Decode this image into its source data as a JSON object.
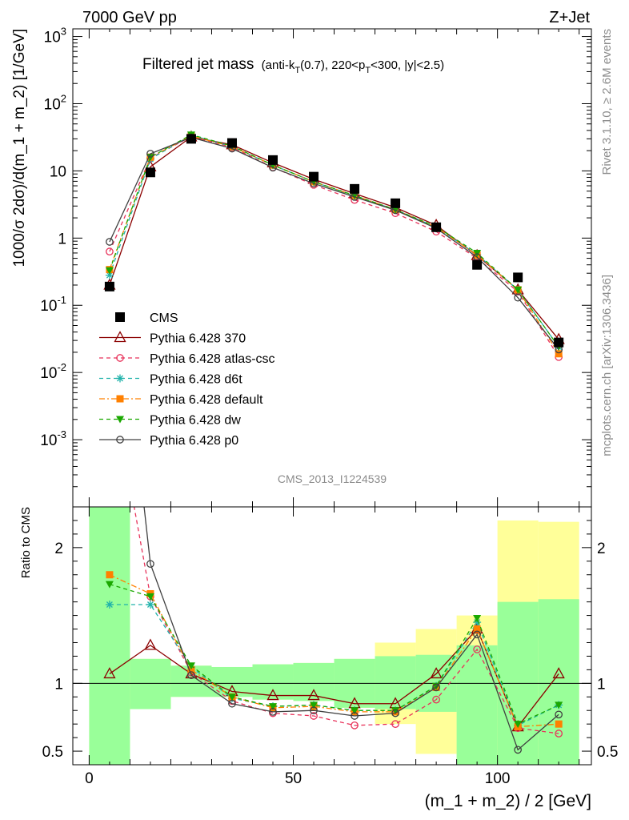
{
  "header": {
    "left": "7000 GeV pp",
    "right": "Z+Jet"
  },
  "title": {
    "main": "Filtered jet mass",
    "sub_pre": "(anti-k",
    "sub_T1": "T",
    "sub_mid": "(0.7), 220<p",
    "sub_T2": "T",
    "sub_post": "<300, |y|<2.5)"
  },
  "side_labels": {
    "rivet": "Rivet 3.1.10, ≥ 2.6M events",
    "mcplots": "mcplots.cern.ch [arXiv:1306.3436]"
  },
  "analysis_id": "CMS_2013_I1224539",
  "chart_data": {
    "type": "scatter",
    "xlabel": "(m_1 + m_2) / 2 [GeV]",
    "ylabel": "1000/σ 2dσ)/d(m_1 + m_2) [1/GeV]",
    "ratio_ylabel": "Ratio to CMS",
    "xlim": [
      -4,
      123
    ],
    "ylim": [
      0.0001,
      1300
    ],
    "ylog": true,
    "ratio_ylim": [
      0.4,
      2.3
    ],
    "x_ticks": [
      "0",
      "50",
      "100"
    ],
    "y_ticks": [
      "10^-3",
      "10^-2",
      "10^-1",
      "1",
      "10",
      "10^2",
      "10^3"
    ],
    "ratio_ticks": [
      "0.5",
      "1",
      "2"
    ],
    "x": [
      5,
      15,
      25,
      35,
      45,
      55,
      65,
      75,
      85,
      95,
      105,
      115
    ],
    "bins": [
      [
        0,
        10
      ],
      [
        10,
        20
      ],
      [
        20,
        30
      ],
      [
        30,
        40
      ],
      [
        40,
        50
      ],
      [
        50,
        60
      ],
      [
        60,
        70
      ],
      [
        70,
        80
      ],
      [
        80,
        90
      ],
      [
        90,
        100
      ],
      [
        100,
        110
      ],
      [
        110,
        120
      ]
    ],
    "band_inner": [
      [
        0.3,
        2.3
      ],
      [
        0.81,
        1.18
      ],
      [
        0.9,
        1.13
      ],
      [
        0.9,
        1.12
      ],
      [
        0.88,
        1.14
      ],
      [
        0.87,
        1.15
      ],
      [
        0.82,
        1.18
      ],
      [
        0.81,
        1.2
      ],
      [
        0.79,
        1.21
      ],
      [
        0.4,
        1.28
      ],
      [
        0.4,
        1.6
      ],
      [
        0.4,
        1.62
      ]
    ],
    "band_outer": [
      [
        0.3,
        2.3
      ],
      [
        0.81,
        1.18
      ],
      [
        0.9,
        1.13
      ],
      [
        0.9,
        1.12
      ],
      [
        0.88,
        1.14
      ],
      [
        0.87,
        1.15
      ],
      [
        0.82,
        1.18
      ],
      [
        0.7,
        1.3
      ],
      [
        0.48,
        1.4
      ],
      [
        0.4,
        1.5
      ],
      [
        0.4,
        2.2
      ],
      [
        0.4,
        2.19
      ]
    ],
    "series": [
      {
        "name": "CMS",
        "color": "#000000",
        "marker": "square",
        "line": "none",
        "values": [
          0.19,
          9.5,
          30,
          26,
          14.5,
          8.2,
          5.4,
          3.3,
          1.45,
          0.4,
          0.26,
          0.028
        ],
        "ratio": [
          1,
          1,
          1,
          1,
          1,
          1,
          1,
          1,
          1,
          1,
          1,
          1
        ]
      },
      {
        "name": "Pythia 6.428 370",
        "color": "#8b0000",
        "marker": "triangle-open",
        "line": "solid",
        "values": [
          0.2,
          11.5,
          32,
          24.5,
          13.2,
          7.5,
          4.6,
          2.85,
          1.55,
          0.55,
          0.17,
          0.031
        ],
        "ratio": [
          1.07,
          1.28,
          1.07,
          0.94,
          0.91,
          0.91,
          0.85,
          0.85,
          1.07,
          1.4,
          0.68,
          1.07
        ]
      },
      {
        "name": "Pythia 6.428 atlas-csc",
        "color": "#e8325a",
        "marker": "circle-open",
        "line": "dashed",
        "values": [
          0.63,
          15.5,
          32.5,
          22.5,
          11.3,
          6.2,
          3.7,
          2.35,
          1.25,
          0.5,
          0.16,
          0.017
        ],
        "ratio": [
          3.3,
          1.64,
          1.08,
          0.87,
          0.78,
          0.76,
          0.69,
          0.7,
          0.88,
          1.25,
          0.67,
          0.63
        ]
      },
      {
        "name": "Pythia 6.428 d6t",
        "color": "#20b2aa",
        "marker": "star",
        "line": "dashed",
        "values": [
          0.28,
          15,
          34,
          23,
          12.2,
          6.9,
          4.2,
          2.65,
          1.45,
          0.57,
          0.17,
          0.024
        ],
        "ratio": [
          1.58,
          1.58,
          1.12,
          0.89,
          0.83,
          0.84,
          0.8,
          0.8,
          0.98,
          1.45,
          0.69,
          0.84
        ]
      },
      {
        "name": "Pythia 6.428 default",
        "color": "#ff8000",
        "marker": "square-filled",
        "line": "dashdot",
        "values": [
          0.34,
          16,
          33,
          23,
          12.2,
          6.9,
          4.3,
          2.65,
          1.45,
          0.56,
          0.17,
          0.019
        ],
        "ratio": [
          1.8,
          1.66,
          1.1,
          0.9,
          0.82,
          0.83,
          0.79,
          0.79,
          0.97,
          1.4,
          0.68,
          0.7
        ]
      },
      {
        "name": "Pythia 6.428 dw",
        "color": "#1aa800",
        "marker": "triangle-down",
        "line": "dashed",
        "values": [
          0.33,
          16,
          34.5,
          23.5,
          12.2,
          6.9,
          4.3,
          2.65,
          1.48,
          0.6,
          0.17,
          0.024
        ],
        "ratio": [
          1.73,
          1.64,
          1.13,
          0.9,
          0.83,
          0.84,
          0.8,
          0.8,
          0.98,
          1.48,
          0.7,
          0.84
        ]
      },
      {
        "name": "Pythia 6.428 p0",
        "color": "#404040",
        "marker": "circle-open",
        "line": "solid",
        "values": [
          0.88,
          18,
          31.5,
          21.5,
          11.2,
          6.5,
          4.1,
          2.6,
          1.4,
          0.52,
          0.13,
          0.022
        ],
        "ratio": [
          4.6,
          1.88,
          1.06,
          0.85,
          0.79,
          0.8,
          0.76,
          0.78,
          0.97,
          1.36,
          0.51,
          0.77
        ]
      }
    ]
  }
}
